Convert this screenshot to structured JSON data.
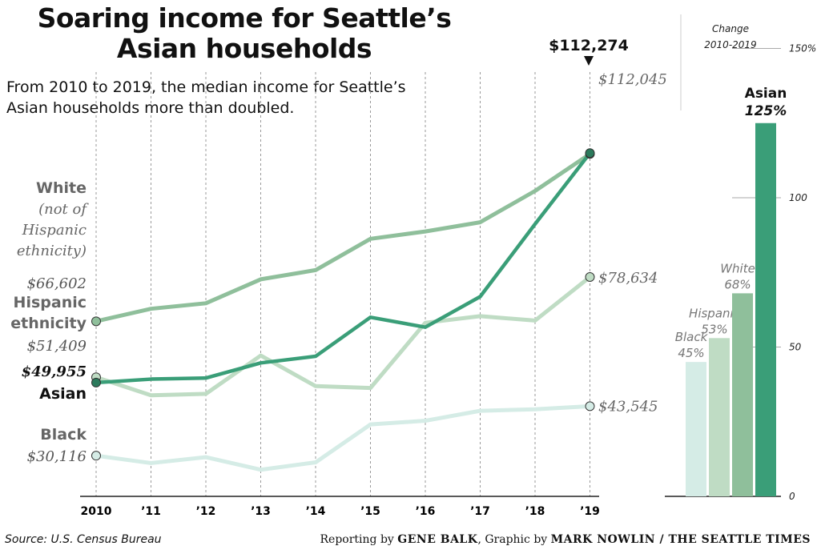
{
  "header": {
    "title_line1": "Soaring income for Seattle’s",
    "title_line2": "Asian households",
    "subtitle_line1": "From 2010 to 2019, the median income for Seattle’s",
    "subtitle_line2": "Asian households more than doubled."
  },
  "footer": {
    "source": "Source: U.S. Census Bureau",
    "credit_prefix": "Reporting by ",
    "credit_reporter": "GENE BALK",
    "credit_middle": ", Graphic by ",
    "credit_graphic": "MARK NOWLIN / THE SEATTLE TIMES"
  },
  "colors": {
    "asian": "#3a9e78",
    "white": "#8fbf9b",
    "hispanic": "#bfdcc4",
    "black": "#d5ece6",
    "grid": "#999999"
  },
  "chart_data": [
    {
      "type": "line",
      "title": "",
      "xlabel": "",
      "ylabel": "",
      "x": [
        "2010",
        "’11",
        "’12",
        "’13",
        "’14",
        "’15",
        "’16",
        "’17",
        "’18",
        "’19"
      ],
      "ylim": [
        20000,
        120000
      ],
      "grid": "vertical dotted",
      "series": [
        {
          "key": "white",
          "name_lines": [
            "White",
            "(not of",
            "Hispanic",
            "ethnicity)"
          ],
          "start_label": "$66,602",
          "end_label": "$112,045",
          "values": [
            66602,
            70000,
            71500,
            78000,
            80500,
            89000,
            91000,
            93500,
            102000,
            112045
          ]
        },
        {
          "key": "hispanic",
          "name_lines": [
            "Hispanic",
            "ethnicity"
          ],
          "start_label": "$51,409",
          "end_label": "$78,634",
          "values": [
            51409,
            46500,
            46900,
            57300,
            49000,
            48500,
            66200,
            68000,
            66800,
            78634
          ]
        },
        {
          "key": "asian",
          "name_lines": [
            "Asian"
          ],
          "start_label": "$49,955",
          "end_label": "$112,274",
          "values": [
            49955,
            50900,
            51200,
            55300,
            57100,
            67700,
            65000,
            73300,
            93000,
            112274
          ]
        },
        {
          "key": "black",
          "name_lines": [
            "Black"
          ],
          "start_label": "$30,116",
          "end_label": "$43,545",
          "values": [
            30116,
            28100,
            29700,
            26300,
            28300,
            38600,
            39600,
            42300,
            42700,
            43545
          ]
        }
      ]
    },
    {
      "type": "bar",
      "title_lines": [
        "Change",
        "2010-2019"
      ],
      "categories": [
        "Black",
        "Hispanic",
        "White",
        "Asian"
      ],
      "values": [
        45,
        53,
        68,
        125
      ],
      "value_labels": [
        "45%",
        "53%",
        "68%",
        "125%"
      ],
      "ylim": [
        0,
        150
      ],
      "yticks": [
        0,
        50,
        100,
        150
      ],
      "ytick_labels": [
        "0",
        "50",
        "100",
        "150%"
      ],
      "ylabel": ""
    }
  ]
}
